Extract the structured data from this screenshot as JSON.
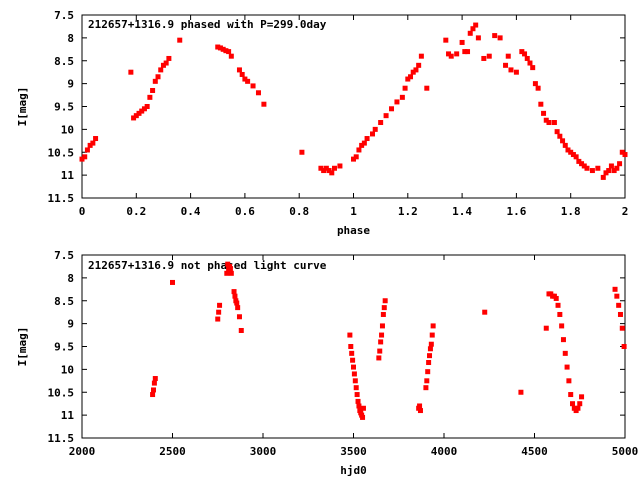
{
  "chart_data": [
    {
      "type": "scatter",
      "title": "212657+1316.9 phased with P=299.0day",
      "xlabel": "phase",
      "ylabel": "I[mag]",
      "xlim": [
        0,
        2
      ],
      "ylim": [
        11.5,
        7.5
      ],
      "y_inverted": true,
      "grid": false,
      "marker_color": "#ff0000",
      "xticks": [
        "0",
        "0.2",
        "0.4",
        "0.6",
        "0.8",
        "1",
        "1.2",
        "1.4",
        "1.6",
        "1.8",
        "2"
      ],
      "yticks": [
        "7.5",
        "8",
        "8.5",
        "9",
        "9.5",
        "10",
        "10.5",
        "11",
        "11.5"
      ],
      "series": [
        {
          "points": [
            [
              0.0,
              10.65
            ],
            [
              0.01,
              10.6
            ],
            [
              0.02,
              10.45
            ],
            [
              0.03,
              10.35
            ],
            [
              0.04,
              10.3
            ],
            [
              0.05,
              10.2
            ],
            [
              0.18,
              8.75
            ],
            [
              0.19,
              9.75
            ],
            [
              0.2,
              9.7
            ],
            [
              0.21,
              9.65
            ],
            [
              0.22,
              9.6
            ],
            [
              0.23,
              9.55
            ],
            [
              0.24,
              9.5
            ],
            [
              0.25,
              9.3
            ],
            [
              0.26,
              9.15
            ],
            [
              0.27,
              8.95
            ],
            [
              0.28,
              8.85
            ],
            [
              0.29,
              8.7
            ],
            [
              0.3,
              8.6
            ],
            [
              0.31,
              8.55
            ],
            [
              0.32,
              8.45
            ],
            [
              0.36,
              8.05
            ],
            [
              0.5,
              8.2
            ],
            [
              0.51,
              8.22
            ],
            [
              0.52,
              8.25
            ],
            [
              0.53,
              8.28
            ],
            [
              0.54,
              8.3
            ],
            [
              0.55,
              8.4
            ],
            [
              0.58,
              8.7
            ],
            [
              0.59,
              8.8
            ],
            [
              0.6,
              8.9
            ],
            [
              0.61,
              8.95
            ],
            [
              0.63,
              9.05
            ],
            [
              0.65,
              9.2
            ],
            [
              0.67,
              9.45
            ],
            [
              0.81,
              10.5
            ],
            [
              0.88,
              10.85
            ],
            [
              0.89,
              10.9
            ],
            [
              0.9,
              10.85
            ],
            [
              0.91,
              10.9
            ],
            [
              0.92,
              10.95
            ],
            [
              0.93,
              10.85
            ],
            [
              0.95,
              10.8
            ],
            [
              1.0,
              10.65
            ],
            [
              1.01,
              10.6
            ],
            [
              1.02,
              10.45
            ],
            [
              1.03,
              10.35
            ],
            [
              1.04,
              10.3
            ],
            [
              1.05,
              10.2
            ],
            [
              1.07,
              10.1
            ],
            [
              1.08,
              10.0
            ],
            [
              1.1,
              9.85
            ],
            [
              1.12,
              9.7
            ],
            [
              1.14,
              9.55
            ],
            [
              1.16,
              9.4
            ],
            [
              1.18,
              9.3
            ],
            [
              1.19,
              9.1
            ],
            [
              1.2,
              8.9
            ],
            [
              1.21,
              8.85
            ],
            [
              1.22,
              8.75
            ],
            [
              1.23,
              8.7
            ],
            [
              1.24,
              8.6
            ],
            [
              1.25,
              8.4
            ],
            [
              1.27,
              9.1
            ],
            [
              1.34,
              8.05
            ],
            [
              1.35,
              8.35
            ],
            [
              1.36,
              8.4
            ],
            [
              1.38,
              8.35
            ],
            [
              1.4,
              8.1
            ],
            [
              1.41,
              8.3
            ],
            [
              1.42,
              8.3
            ],
            [
              1.43,
              7.9
            ],
            [
              1.44,
              7.8
            ],
            [
              1.45,
              7.72
            ],
            [
              1.46,
              8.0
            ],
            [
              1.48,
              8.45
            ],
            [
              1.5,
              8.4
            ],
            [
              1.52,
              7.95
            ],
            [
              1.54,
              8.0
            ],
            [
              1.56,
              8.6
            ],
            [
              1.57,
              8.4
            ],
            [
              1.58,
              8.7
            ],
            [
              1.6,
              8.75
            ],
            [
              1.62,
              8.3
            ],
            [
              1.63,
              8.35
            ],
            [
              1.64,
              8.45
            ],
            [
              1.65,
              8.55
            ],
            [
              1.66,
              8.65
            ],
            [
              1.67,
              9.0
            ],
            [
              1.68,
              9.1
            ],
            [
              1.69,
              9.45
            ],
            [
              1.7,
              9.65
            ],
            [
              1.71,
              9.8
            ],
            [
              1.72,
              9.85
            ],
            [
              1.74,
              9.85
            ],
            [
              1.75,
              10.05
            ],
            [
              1.76,
              10.15
            ],
            [
              1.77,
              10.25
            ],
            [
              1.78,
              10.35
            ],
            [
              1.79,
              10.45
            ],
            [
              1.8,
              10.5
            ],
            [
              1.81,
              10.55
            ],
            [
              1.82,
              10.6
            ],
            [
              1.83,
              10.7
            ],
            [
              1.84,
              10.75
            ],
            [
              1.85,
              10.8
            ],
            [
              1.86,
              10.85
            ],
            [
              1.88,
              10.9
            ],
            [
              1.9,
              10.85
            ],
            [
              1.92,
              11.05
            ],
            [
              1.93,
              10.95
            ],
            [
              1.94,
              10.9
            ],
            [
              1.95,
              10.8
            ],
            [
              1.96,
              10.9
            ],
            [
              1.97,
              10.85
            ],
            [
              1.98,
              10.75
            ],
            [
              1.99,
              10.5
            ],
            [
              2.0,
              10.55
            ]
          ]
        }
      ]
    },
    {
      "type": "scatter",
      "title": "212657+1316.9 not phased light curve",
      "xlabel": "hjd0",
      "ylabel": "I[mag]",
      "xlim": [
        2000,
        5000
      ],
      "ylim": [
        11.5,
        7.5
      ],
      "y_inverted": true,
      "grid": false,
      "marker_color": "#ff0000",
      "xticks": [
        "2000",
        "2500",
        "3000",
        "3500",
        "4000",
        "4500",
        "5000"
      ],
      "yticks": [
        "7.5",
        "8",
        "8.5",
        "9",
        "9.5",
        "10",
        "10.5",
        "11",
        "11.5"
      ],
      "series": [
        {
          "points": [
            [
              2390,
              10.55
            ],
            [
              2395,
              10.45
            ],
            [
              2400,
              10.3
            ],
            [
              2405,
              10.2
            ],
            [
              2500,
              8.1
            ],
            [
              2750,
              8.9
            ],
            [
              2755,
              8.75
            ],
            [
              2760,
              8.6
            ],
            [
              2800,
              7.9
            ],
            [
              2805,
              7.7
            ],
            [
              2810,
              7.8
            ],
            [
              2815,
              7.75
            ],
            [
              2820,
              7.8
            ],
            [
              2825,
              7.9
            ],
            [
              2840,
              8.3
            ],
            [
              2845,
              8.4
            ],
            [
              2850,
              8.5
            ],
            [
              2855,
              8.55
            ],
            [
              2860,
              8.65
            ],
            [
              2870,
              8.85
            ],
            [
              2880,
              9.15
            ],
            [
              3480,
              9.25
            ],
            [
              3485,
              9.5
            ],
            [
              3490,
              9.65
            ],
            [
              3495,
              9.8
            ],
            [
              3500,
              9.95
            ],
            [
              3505,
              10.1
            ],
            [
              3510,
              10.25
            ],
            [
              3515,
              10.4
            ],
            [
              3520,
              10.55
            ],
            [
              3525,
              10.7
            ],
            [
              3530,
              10.8
            ],
            [
              3535,
              10.9
            ],
            [
              3540,
              10.95
            ],
            [
              3545,
              11.0
            ],
            [
              3550,
              11.05
            ],
            [
              3555,
              10.85
            ],
            [
              3640,
              9.75
            ],
            [
              3645,
              9.6
            ],
            [
              3650,
              9.4
            ],
            [
              3655,
              9.25
            ],
            [
              3660,
              9.05
            ],
            [
              3665,
              8.8
            ],
            [
              3670,
              8.65
            ],
            [
              3675,
              8.5
            ],
            [
              3860,
              10.85
            ],
            [
              3865,
              10.8
            ],
            [
              3870,
              10.9
            ],
            [
              3900,
              10.4
            ],
            [
              3905,
              10.25
            ],
            [
              3910,
              10.05
            ],
            [
              3915,
              9.85
            ],
            [
              3920,
              9.7
            ],
            [
              3925,
              9.55
            ],
            [
              3930,
              9.45
            ],
            [
              3935,
              9.25
            ],
            [
              3940,
              9.05
            ],
            [
              4225,
              8.75
            ],
            [
              4425,
              10.5
            ],
            [
              4565,
              9.1
            ],
            [
              4580,
              8.35
            ],
            [
              4590,
              8.35
            ],
            [
              4600,
              8.4
            ],
            [
              4610,
              8.4
            ],
            [
              4620,
              8.45
            ],
            [
              4630,
              8.6
            ],
            [
              4640,
              8.8
            ],
            [
              4650,
              9.05
            ],
            [
              4660,
              9.35
            ],
            [
              4670,
              9.65
            ],
            [
              4680,
              9.95
            ],
            [
              4690,
              10.25
            ],
            [
              4700,
              10.55
            ],
            [
              4710,
              10.75
            ],
            [
              4720,
              10.85
            ],
            [
              4730,
              10.9
            ],
            [
              4740,
              10.85
            ],
            [
              4750,
              10.75
            ],
            [
              4760,
              10.6
            ],
            [
              4945,
              8.25
            ],
            [
              4955,
              8.4
            ],
            [
              4965,
              8.6
            ],
            [
              4975,
              8.8
            ],
            [
              4985,
              9.1
            ],
            [
              4995,
              9.5
            ]
          ]
        }
      ]
    }
  ]
}
